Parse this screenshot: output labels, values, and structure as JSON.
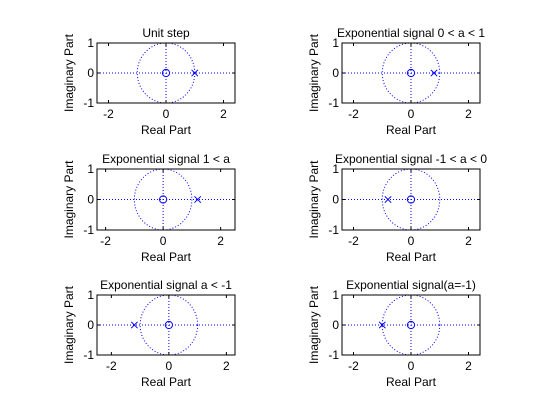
{
  "chart_data": [
    {
      "type": "scatter",
      "title": "Unit step",
      "xlabel": "Real Part",
      "ylabel": "Imaginary Part",
      "xlim": [
        -2.4,
        2.4
      ],
      "ylim": [
        -1,
        1
      ],
      "xticks": [
        -2,
        0,
        2
      ],
      "yticks": [
        -1,
        0,
        1
      ],
      "unit_circle": true,
      "zeros": [
        {
          "re": 0,
          "im": 0
        }
      ],
      "poles": [
        {
          "re": 1,
          "im": 0
        }
      ]
    },
    {
      "type": "scatter",
      "title": "Exponential signal 0 < a < 1",
      "xlabel": "Real Part",
      "ylabel": "Imaginary Part",
      "xlim": [
        -2.4,
        2.4
      ],
      "ylim": [
        -1,
        1
      ],
      "xticks": [
        -2,
        0,
        2
      ],
      "yticks": [
        -1,
        0,
        1
      ],
      "unit_circle": true,
      "zeros": [
        {
          "re": 0,
          "im": 0
        }
      ],
      "poles": [
        {
          "re": 0.8,
          "im": 0
        }
      ]
    },
    {
      "type": "scatter",
      "title": "Exponential signal 1 < a",
      "xlabel": "Real Part",
      "ylabel": "Imaginary Part",
      "xlim": [
        -2.3,
        2.5
      ],
      "ylim": [
        -1,
        1
      ],
      "xticks": [
        -2,
        0,
        2
      ],
      "yticks": [
        -1,
        0,
        1
      ],
      "unit_circle": true,
      "zeros": [
        {
          "re": 0,
          "im": 0
        }
      ],
      "poles": [
        {
          "re": 1.2,
          "im": 0
        }
      ]
    },
    {
      "type": "scatter",
      "title": "Exponential signal -1 < a < 0",
      "xlabel": "Real Part",
      "ylabel": "Imaginary Part",
      "xlim": [
        -2.4,
        2.4
      ],
      "ylim": [
        -1,
        1
      ],
      "xticks": [
        -2,
        0,
        2
      ],
      "yticks": [
        -1,
        0,
        1
      ],
      "unit_circle": true,
      "zeros": [
        {
          "re": 0,
          "im": 0
        }
      ],
      "poles": [
        {
          "re": -0.8,
          "im": 0
        }
      ]
    },
    {
      "type": "scatter",
      "title": "Exponential signal a < -1",
      "xlabel": "Real Part",
      "ylabel": "Imaginary Part",
      "xlim": [
        -2.5,
        2.3
      ],
      "ylim": [
        -1,
        1
      ],
      "xticks": [
        -2,
        0,
        2
      ],
      "yticks": [
        -1,
        0,
        1
      ],
      "unit_circle": true,
      "zeros": [
        {
          "re": 0,
          "im": 0
        }
      ],
      "poles": [
        {
          "re": -1.2,
          "im": 0
        }
      ]
    },
    {
      "type": "scatter",
      "title": "Exponential signal(a=-1)",
      "xlabel": "Real Part",
      "ylabel": "Imaginary Part",
      "xlim": [
        -2.4,
        2.4
      ],
      "ylim": [
        -1,
        1
      ],
      "xticks": [
        -2,
        0,
        2
      ],
      "yticks": [
        -1,
        0,
        1
      ],
      "unit_circle": true,
      "zeros": [
        {
          "re": 0,
          "im": 0
        }
      ],
      "poles": [
        {
          "re": -1,
          "im": 0
        }
      ]
    }
  ],
  "colors": {
    "marker": "#0000ff",
    "guide": "#0000ff",
    "axes": "#000000"
  }
}
